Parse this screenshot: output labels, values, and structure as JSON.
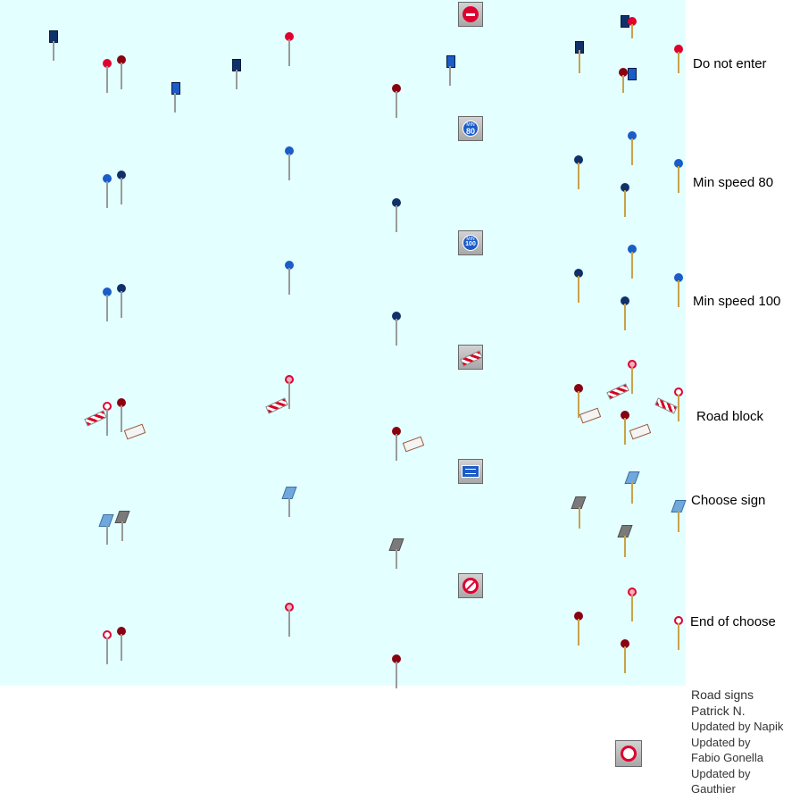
{
  "labels": {
    "do_not_enter": "Do not enter",
    "min_speed_80": "Min speed 80",
    "min_speed_100": "Min speed 100",
    "road_block": "Road block",
    "choose_sign": "Choose sign",
    "end_of_choose": "End of choose"
  },
  "icon_text": {
    "min80_top": "MIN",
    "min80_num": "80",
    "min100_top": "MIN",
    "min100_num": "100"
  },
  "credits": {
    "line1": "Road signs",
    "line2": "Patrick N.",
    "line3": "Updated by Napik",
    "line4": "Updated by",
    "line5": "Fabio Gonella",
    "line6": "Updated by",
    "line7": "Gauthier"
  },
  "colors": {
    "background": "#e4ffff",
    "red_sign": "#d80020",
    "blue_sign": "#1a5cc8",
    "dark_sign": "#10306a"
  }
}
